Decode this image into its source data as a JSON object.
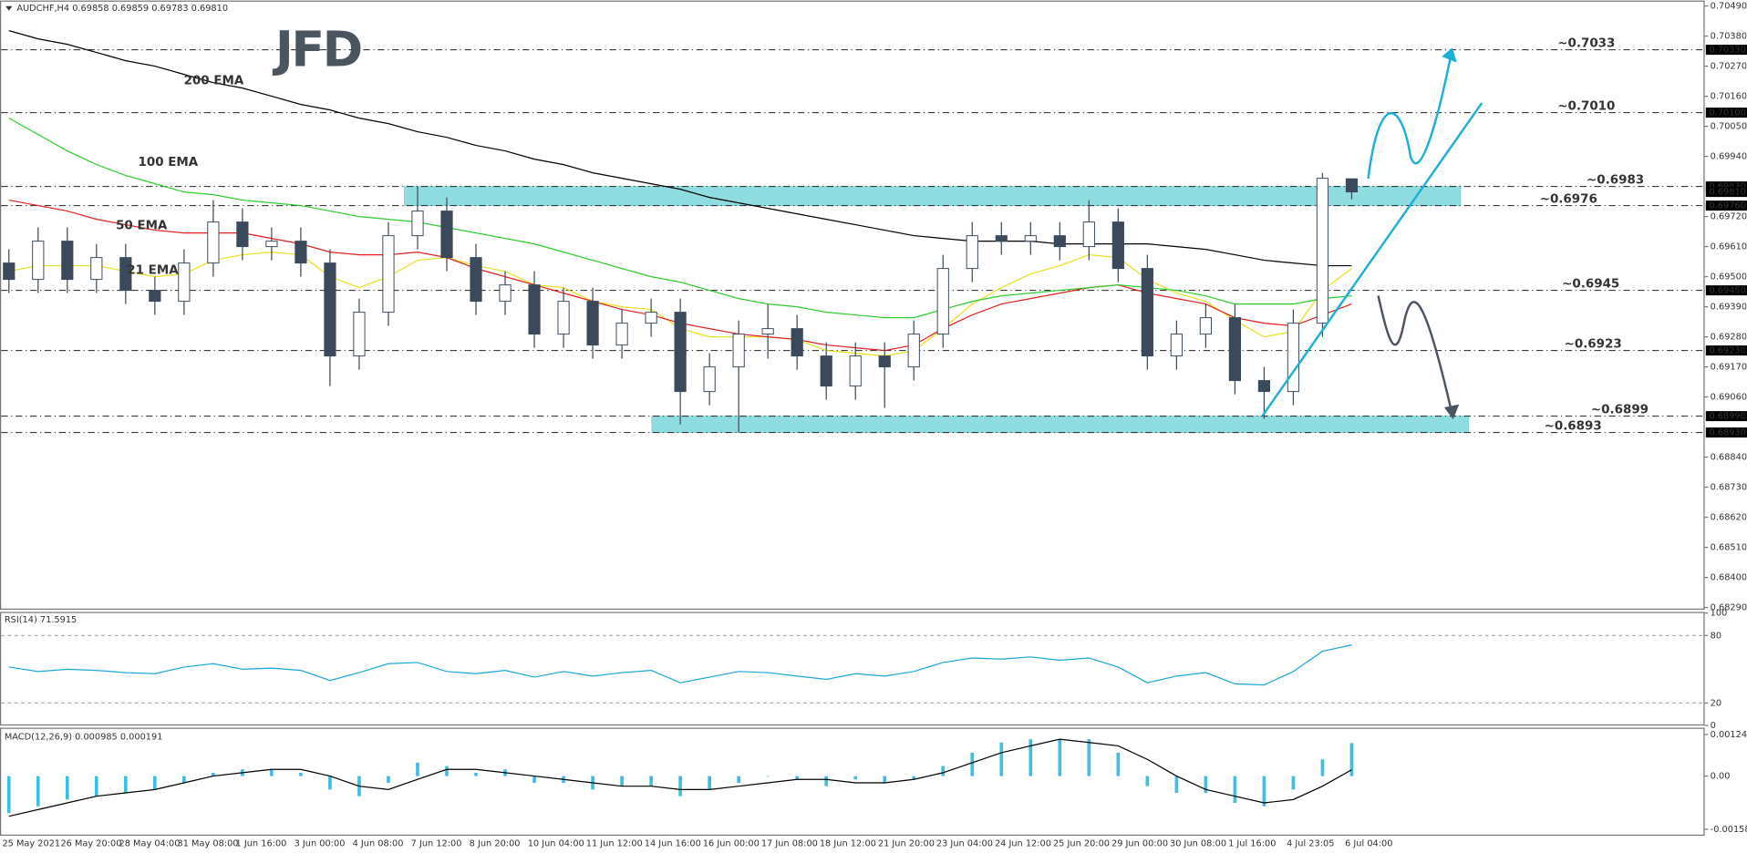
{
  "header": {
    "title": "AUDCHF,H4  0.69858 0.69859 0.69783 0.69810",
    "logo": "JFD"
  },
  "chart_data": [
    {
      "type": "candlestick",
      "categories": [
        "25 May 2021",
        null,
        "26 May 20:00",
        null,
        "28 May 04:00",
        null,
        "31 May 08:00",
        null,
        "1 Jun 16:00",
        null,
        "3 Jun 00:00",
        null,
        "4 Jun 08:00",
        null,
        "7 Jun 12:00",
        null,
        "8 Jun 20:00",
        null,
        "10 Jun 04:00",
        null,
        "11 Jun 12:00",
        null,
        "14 Jun 16:00",
        null,
        "16 Jun 00:00",
        null,
        "17 Jun 08:00",
        null,
        "18 Jun 12:00",
        null,
        "21 Jun 20:00",
        null,
        "23 Jun 04:00",
        null,
        "24 Jun 12:00",
        null,
        "25 Jun 20:00",
        null,
        "29 Jun 00:00",
        null,
        "30 Jun 08:00",
        null,
        "1 Jul 16:00",
        null,
        "4 Jul 23:05",
        null,
        "6 Jul 04:00"
      ],
      "ohlc": [
        [
          0.6955,
          0.696,
          0.6944,
          0.6949
        ],
        [
          0.6949,
          0.6968,
          0.6944,
          0.6963
        ],
        [
          0.6963,
          0.6968,
          0.6944,
          0.6949
        ],
        [
          0.6949,
          0.6962,
          0.6944,
          0.6957
        ],
        [
          0.6957,
          0.6962,
          0.694,
          0.6945
        ],
        [
          0.6945,
          0.695,
          0.6936,
          0.6941
        ],
        [
          0.6941,
          0.696,
          0.6936,
          0.6955
        ],
        [
          0.6955,
          0.6978,
          0.695,
          0.697
        ],
        [
          0.697,
          0.6975,
          0.6956,
          0.6961
        ],
        [
          0.6961,
          0.6968,
          0.6956,
          0.6963
        ],
        [
          0.6963,
          0.6968,
          0.695,
          0.6955
        ],
        [
          0.6955,
          0.696,
          0.691,
          0.6921
        ],
        [
          0.6921,
          0.6942,
          0.6916,
          0.6937
        ],
        [
          0.6937,
          0.697,
          0.6932,
          0.6965
        ],
        [
          0.6965,
          0.6983,
          0.696,
          0.6974
        ],
        [
          0.6974,
          0.6979,
          0.6952,
          0.6957
        ],
        [
          0.6957,
          0.6962,
          0.6936,
          0.6941
        ],
        [
          0.6941,
          0.6952,
          0.6936,
          0.6947
        ],
        [
          0.6947,
          0.6952,
          0.6924,
          0.6929
        ],
        [
          0.6929,
          0.6946,
          0.6924,
          0.6941
        ],
        [
          0.6941,
          0.6946,
          0.692,
          0.6925
        ],
        [
          0.6925,
          0.6938,
          0.692,
          0.6933
        ],
        [
          0.6933,
          0.6942,
          0.6928,
          0.6937
        ],
        [
          0.6937,
          0.6942,
          0.6896,
          0.6908
        ],
        [
          0.6908,
          0.6922,
          0.6903,
          0.6917
        ],
        [
          0.6917,
          0.6934,
          0.6893,
          0.6929
        ],
        [
          0.6929,
          0.694,
          0.692,
          0.6931
        ],
        [
          0.6931,
          0.6936,
          0.6916,
          0.6921
        ],
        [
          0.6921,
          0.6926,
          0.6905,
          0.691
        ],
        [
          0.691,
          0.6926,
          0.6905,
          0.6921
        ],
        [
          0.6921,
          0.6926,
          0.6902,
          0.6917
        ],
        [
          0.6917,
          0.6934,
          0.6912,
          0.6929
        ],
        [
          0.6929,
          0.6958,
          0.6924,
          0.6953
        ],
        [
          0.6953,
          0.697,
          0.6948,
          0.6965
        ],
        [
          0.6965,
          0.697,
          0.6958,
          0.6963
        ],
        [
          0.6963,
          0.697,
          0.6958,
          0.6965
        ],
        [
          0.6965,
          0.697,
          0.6956,
          0.6961
        ],
        [
          0.6961,
          0.6978,
          0.6956,
          0.697
        ],
        [
          0.697,
          0.6975,
          0.6948,
          0.6953
        ],
        [
          0.6953,
          0.6958,
          0.6916,
          0.6921
        ],
        [
          0.6921,
          0.6934,
          0.6916,
          0.6929
        ],
        [
          0.6929,
          0.694,
          0.6924,
          0.6935
        ],
        [
          0.6935,
          0.694,
          0.6907,
          0.6912
        ],
        [
          0.6912,
          0.6917,
          0.6898,
          0.6908
        ],
        [
          0.6908,
          0.6938,
          0.6903,
          0.6933
        ],
        [
          0.6933,
          0.6988,
          0.6928,
          0.6986
        ],
        [
          0.69858,
          0.69859,
          0.69783,
          0.6981
        ]
      ],
      "up_color": "#ffffff",
      "down_color": "#3b4a5a",
      "wick_color": "#3b4a5a",
      "series": [
        {
          "name": "200 EMA",
          "color": "#000000",
          "values": [
            0.704,
            0.7037,
            0.7035,
            0.7032,
            0.7029,
            0.7027,
            0.7024,
            0.7021,
            0.7019,
            0.7016,
            0.7013,
            0.7011,
            0.7008,
            0.7006,
            0.7003,
            0.7001,
            0.6998,
            0.6996,
            0.6993,
            0.6991,
            0.6988,
            0.6986,
            0.6984,
            0.6982,
            0.6979,
            0.6977,
            0.6975,
            0.6973,
            0.6971,
            0.6969,
            0.6967,
            0.6965,
            0.6964,
            0.6963,
            0.6963,
            0.6963,
            0.6962,
            0.6962,
            0.6962,
            0.6962,
            0.6961,
            0.696,
            0.6958,
            0.6956,
            0.6955,
            0.6954,
            0.6954
          ]
        },
        {
          "name": "100 EMA",
          "color": "#2ecc2e",
          "values": [
            0.7008,
            0.7002,
            0.6996,
            0.6991,
            0.6987,
            0.6984,
            0.6981,
            0.698,
            0.6978,
            0.6977,
            0.6976,
            0.6974,
            0.6972,
            0.6971,
            0.697,
            0.6968,
            0.6966,
            0.6964,
            0.6962,
            0.6959,
            0.6956,
            0.6953,
            0.695,
            0.6948,
            0.6945,
            0.6942,
            0.694,
            0.6939,
            0.6937,
            0.6936,
            0.6935,
            0.6935,
            0.6938,
            0.6941,
            0.6943,
            0.6944,
            0.6945,
            0.6946,
            0.6947,
            0.6946,
            0.6945,
            0.6943,
            0.694,
            0.694,
            0.694,
            0.6942,
            0.6943
          ]
        },
        {
          "name": "50 EMA",
          "color": "#e02020",
          "values": [
            0.6978,
            0.6976,
            0.6974,
            0.6971,
            0.6969,
            0.6967,
            0.6966,
            0.6966,
            0.6966,
            0.6964,
            0.6962,
            0.6959,
            0.6958,
            0.6958,
            0.6959,
            0.6957,
            0.6953,
            0.695,
            0.6947,
            0.6944,
            0.6941,
            0.6938,
            0.6936,
            0.6933,
            0.6931,
            0.6929,
            0.6928,
            0.6927,
            0.6925,
            0.6924,
            0.6923,
            0.6925,
            0.6931,
            0.6936,
            0.694,
            0.6942,
            0.6944,
            0.6946,
            0.6947,
            0.6944,
            0.6942,
            0.694,
            0.6935,
            0.6933,
            0.6932,
            0.6936,
            0.694
          ]
        },
        {
          "name": "21 EMA",
          "color": "#e8e020",
          "values": [
            0.6952,
            0.6954,
            0.6954,
            0.6954,
            0.6952,
            0.695,
            0.6951,
            0.6956,
            0.6958,
            0.6959,
            0.6958,
            0.695,
            0.6946,
            0.695,
            0.6956,
            0.6957,
            0.6954,
            0.6952,
            0.6947,
            0.6946,
            0.6941,
            0.6939,
            0.6938,
            0.6931,
            0.6928,
            0.6928,
            0.6928,
            0.6927,
            0.6923,
            0.6922,
            0.6921,
            0.6923,
            0.6931,
            0.694,
            0.6946,
            0.6951,
            0.6954,
            0.6958,
            0.6957,
            0.6949,
            0.6944,
            0.6941,
            0.6934,
            0.6928,
            0.693,
            0.6945,
            0.6953
          ]
        }
      ],
      "ylim": [
        0.68282,
        0.7051
      ],
      "yticks": [
        {
          "value": 0.7049,
          "label": "0.70490"
        },
        {
          "value": 0.7038,
          "label": "0.70380"
        },
        {
          "value": 0.7027,
          "label": "0.70270"
        },
        {
          "value": 0.7016,
          "label": "0.70160"
        },
        {
          "value": 0.7005,
          "label": "0.70050"
        },
        {
          "value": 0.6994,
          "label": "0.69940"
        },
        {
          "value": 0.6972,
          "label": "0.69720"
        },
        {
          "value": 0.6961,
          "label": "0.69610"
        },
        {
          "value": 0.695,
          "label": "0.69500"
        },
        {
          "value": 0.6939,
          "label": "0.69390"
        },
        {
          "value": 0.6928,
          "label": "0.69280"
        },
        {
          "value": 0.6917,
          "label": "0.69170"
        },
        {
          "value": 0.6906,
          "label": "0.69060"
        },
        {
          "value": 0.6884,
          "label": "0.68840"
        },
        {
          "value": 0.6873,
          "label": "0.68730"
        },
        {
          "value": 0.6862,
          "label": "0.68620"
        },
        {
          "value": 0.6851,
          "label": "0.68510"
        },
        {
          "value": 0.684,
          "label": "0.68400"
        },
        {
          "value": 0.6829,
          "label": "0.68290"
        }
      ],
      "levels": [
        {
          "value": 0.7033,
          "label": "~0.7033",
          "axis_label": "0.70330",
          "color": "#1ab0c8"
        },
        {
          "value": 0.701,
          "label": "~0.7010",
          "axis_label": "0.70100",
          "color": "#1ab0c8"
        },
        {
          "value": 0.6983,
          "label": "~0.6983",
          "axis_label": "0.69830",
          "color": "#1ab0c8"
        },
        {
          "value": 0.6976,
          "label": "~0.6976",
          "axis_label": "0.69760",
          "color": "#1ab0c8"
        },
        {
          "value": 0.6945,
          "label": "~0.6945",
          "axis_label": "0.69450",
          "color": "#555555"
        },
        {
          "value": 0.6923,
          "label": "~0.6923",
          "axis_label": "0.69230",
          "color": "#555555"
        },
        {
          "value": 0.6899,
          "label": "~0.6899",
          "axis_label": "0.68990",
          "color": "#555555"
        },
        {
          "value": 0.6893,
          "label": "~0.6893",
          "axis_label": "0.68930",
          "color": "#555555"
        }
      ],
      "last_price": {
        "value": 0.6981,
        "label": "0.69810"
      },
      "zones": [
        {
          "from": 0.6976,
          "to": 0.6983
        },
        {
          "from": 0.6893,
          "to": 0.6899
        }
      ],
      "zone_color": "#8fdde0"
    },
    {
      "type": "line",
      "title": "RSI(14) 71.5915",
      "color": "#1aa8d8",
      "values": [
        52,
        48,
        50,
        49,
        47,
        46,
        52,
        55,
        50,
        51,
        49,
        40,
        47,
        55,
        56,
        48,
        46,
        49,
        43,
        48,
        44,
        47,
        49,
        38,
        43,
        48,
        47,
        44,
        41,
        46,
        44,
        48,
        56,
        60,
        59,
        61,
        58,
        60,
        52,
        38,
        44,
        47,
        37,
        36,
        48,
        66,
        71.5915
      ],
      "ylim": [
        0,
        100
      ],
      "yticks": [
        100,
        80,
        20,
        0
      ]
    },
    {
      "type": "macd",
      "title": "MACD(12,26,9) 0.000985 0.000191",
      "color": "#3cc0e0",
      "signal_color": "#000000",
      "values": [
        -0.0011,
        -0.0009,
        -0.0007,
        -0.0006,
        -0.0005,
        -0.0004,
        -0.0002,
        0.0001,
        0.0002,
        0.0002,
        0.0001,
        -0.0004,
        -0.0006,
        -0.0002,
        0.0004,
        0.0003,
        0.0001,
        0.0002,
        -0.0002,
        -0.0002,
        -0.0004,
        -0.0003,
        -0.0003,
        -0.0006,
        -0.0004,
        -0.0002,
        0,
        -0.0001,
        -0.0003,
        -0.0001,
        -0.0002,
        -0.0001,
        0.0003,
        0.0007,
        0.001,
        0.0011,
        0.0011,
        0.0011,
        0.0007,
        -0.0003,
        -0.0005,
        -0.0005,
        -0.0008,
        -0.0009,
        -0.0004,
        0.0005,
        0.000985
      ],
      "signal": [
        -0.0012,
        -0.001,
        -0.0008,
        -0.0006,
        -0.0005,
        -0.0004,
        -0.0002,
        0,
        0.0001,
        0.0002,
        0.0002,
        0,
        -0.0003,
        -0.0004,
        -0.0001,
        0.0002,
        0.0002,
        0.0001,
        0,
        -0.0001,
        -0.0002,
        -0.0003,
        -0.0003,
        -0.0004,
        -0.0004,
        -0.0003,
        -0.0002,
        -0.0001,
        -0.0001,
        -0.0002,
        -0.0002,
        -0.0001,
        0.0001,
        0.0004,
        0.0007,
        0.0009,
        0.0011,
        0.001,
        0.0009,
        0.0005,
        0,
        -0.0004,
        -0.0006,
        -0.0008,
        -0.0007,
        -0.0003,
        0.000191
      ],
      "ylim": [
        -0.00178,
        0.00141
      ],
      "yticks": [
        {
          "value": 0.001242,
          "label": "0.001242"
        },
        {
          "value": 0,
          "label": "0.00"
        },
        {
          "value": -0.001585,
          "label": "-0.001585"
        }
      ]
    }
  ]
}
